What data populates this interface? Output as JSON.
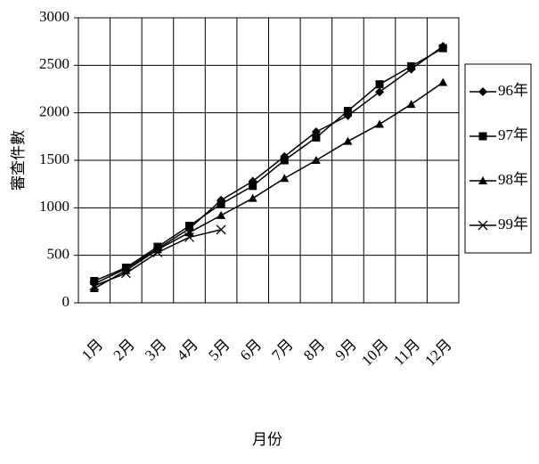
{
  "chart_data": {
    "type": "line",
    "x_label": "月份",
    "y_label": "審查件數",
    "categories": [
      "1月",
      "2月",
      "3月",
      "4月",
      "5月",
      "6月",
      "7月",
      "8月",
      "9月",
      "10月",
      "11月",
      "12月"
    ],
    "series": [
      {
        "name": "96年",
        "color": "#000000",
        "marker": "diamond",
        "values": [
          200,
          360,
          570,
          780,
          1080,
          1280,
          1540,
          1800,
          1970,
          2220,
          2460,
          2700
        ]
      },
      {
        "name": "97年",
        "color": "#000000",
        "marker": "square",
        "values": [
          230,
          370,
          590,
          810,
          1040,
          1230,
          1500,
          1740,
          2020,
          2300,
          2490,
          2680
        ]
      },
      {
        "name": "98年",
        "color": "#000000",
        "marker": "triangle",
        "values": [
          150,
          340,
          560,
          740,
          920,
          1100,
          1310,
          1500,
          1700,
          1880,
          2090,
          2320
        ]
      },
      {
        "name": "99年",
        "color": "#000000",
        "marker": "x",
        "values": [
          180,
          310,
          530,
          690,
          770,
          null,
          null,
          null,
          null,
          null,
          null,
          null
        ]
      }
    ],
    "ylim": [
      0,
      3000
    ],
    "yticks": [
      0,
      500,
      1000,
      1500,
      2000,
      2500,
      3000
    ],
    "grid": true,
    "legend": "right"
  }
}
